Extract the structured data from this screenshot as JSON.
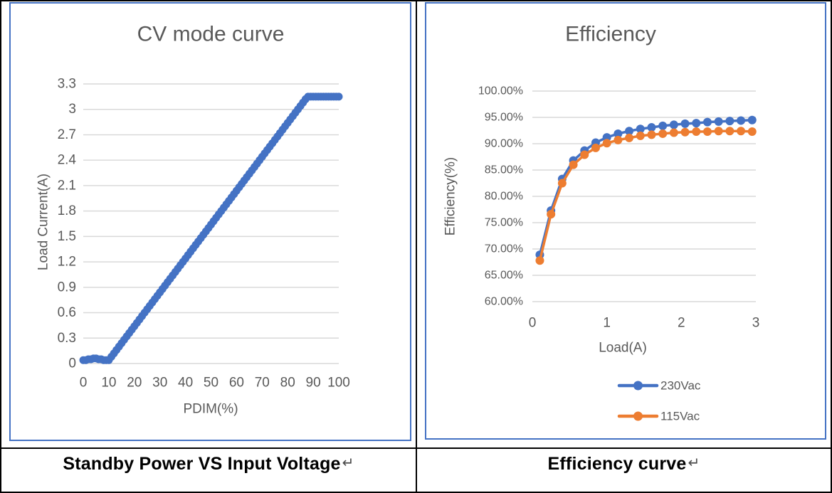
{
  "colors": {
    "series_blue": "#4472C4",
    "series_orange": "#ED7D31",
    "grid": "#D9D9D9",
    "axis_text": "#595959",
    "chart_border": "#4472C4",
    "table_border": "#000000"
  },
  "captions": {
    "left": {
      "text": "Standby Power VS Input Voltage",
      "return_mark": "↵"
    },
    "right": {
      "text": "Efficiency curve",
      "return_mark": "↵"
    }
  },
  "chart_data": [
    {
      "type": "scatter",
      "title": "CV mode curve",
      "xlabel": "PDIM(%)",
      "ylabel": "Load Current(A)",
      "xlim": [
        0,
        100
      ],
      "ylim": [
        0,
        3.3
      ],
      "grid": "horizontal",
      "legend_position": "none",
      "xticks": [
        0,
        10,
        20,
        30,
        40,
        50,
        60,
        70,
        80,
        90,
        100
      ],
      "xtick_labels": [
        "0",
        "10",
        "20",
        "30",
        "40",
        "50",
        "60",
        "70",
        "80",
        "90",
        "100"
      ],
      "yticks": [
        0,
        0.3,
        0.6,
        0.9,
        1.2,
        1.5,
        1.8,
        2.1,
        2.4,
        2.7,
        3,
        3.3
      ],
      "ytick_labels": [
        "0",
        "0.3",
        "0.6",
        "0.9",
        "1.2",
        "1.5",
        "1.8",
        "2.1",
        "2.4",
        "2.7",
        "3",
        "3.3"
      ],
      "series": [
        {
          "name": "Load current",
          "color": "#4472C4",
          "style": "markers",
          "x": [
            0,
            1,
            2,
            3,
            4,
            5,
            6,
            7,
            8,
            9,
            10,
            11,
            12,
            13,
            14,
            15,
            16,
            17,
            18,
            19,
            20,
            21,
            22,
            23,
            24,
            25,
            26,
            27,
            28,
            29,
            30,
            31,
            32,
            33,
            34,
            35,
            36,
            37,
            38,
            39,
            40,
            41,
            42,
            43,
            44,
            45,
            46,
            47,
            48,
            49,
            50,
            51,
            52,
            53,
            54,
            55,
            56,
            57,
            58,
            59,
            60,
            61,
            62,
            63,
            64,
            65,
            66,
            67,
            68,
            69,
            70,
            71,
            72,
            73,
            74,
            75,
            76,
            77,
            78,
            79,
            80,
            81,
            82,
            83,
            84,
            85,
            86,
            87,
            88,
            89,
            90,
            91,
            92,
            93,
            94,
            95,
            96,
            97,
            98,
            99,
            100
          ],
          "y": [
            0.04,
            0.04,
            0.05,
            0.05,
            0.06,
            0.06,
            0.05,
            0.05,
            0.04,
            0.04,
            0.04,
            0.08,
            0.12,
            0.16,
            0.2,
            0.24,
            0.28,
            0.32,
            0.36,
            0.4,
            0.44,
            0.48,
            0.52,
            0.56,
            0.6,
            0.64,
            0.68,
            0.72,
            0.76,
            0.8,
            0.84,
            0.88,
            0.92,
            0.96,
            1.0,
            1.04,
            1.08,
            1.12,
            1.16,
            1.2,
            1.24,
            1.28,
            1.32,
            1.36,
            1.4,
            1.44,
            1.48,
            1.52,
            1.56,
            1.6,
            1.64,
            1.68,
            1.72,
            1.76,
            1.8,
            1.84,
            1.88,
            1.92,
            1.96,
            2.0,
            2.04,
            2.08,
            2.12,
            2.16,
            2.2,
            2.24,
            2.28,
            2.32,
            2.36,
            2.4,
            2.44,
            2.48,
            2.52,
            2.56,
            2.6,
            2.64,
            2.68,
            2.72,
            2.76,
            2.8,
            2.84,
            2.88,
            2.92,
            2.96,
            3.0,
            3.04,
            3.08,
            3.12,
            3.15,
            3.15,
            3.15,
            3.15,
            3.15,
            3.15,
            3.15,
            3.15,
            3.15,
            3.15,
            3.15,
            3.15,
            3.15
          ]
        }
      ]
    },
    {
      "type": "line",
      "title": "Efficiency",
      "xlabel": "Load(A)",
      "ylabel": "Efficiency(%)",
      "xlim": [
        0,
        3
      ],
      "ylim": [
        60,
        100
      ],
      "grid": "horizontal",
      "legend_position": "bottom",
      "xticks": [
        0,
        1,
        2,
        3
      ],
      "xtick_labels": [
        "0",
        "1",
        "2",
        "3"
      ],
      "yticks": [
        60,
        65,
        70,
        75,
        80,
        85,
        90,
        95,
        100
      ],
      "ytick_labels": [
        "60.00%",
        "65.00%",
        "70.00%",
        "75.00%",
        "80.00%",
        "85.00%",
        "90.00%",
        "95.00%",
        "100.00%"
      ],
      "series": [
        {
          "name": "230Vac",
          "color": "#4472C4",
          "style": "line+markers",
          "x": [
            0.1,
            0.25,
            0.4,
            0.55,
            0.7,
            0.85,
            1.0,
            1.15,
            1.3,
            1.45,
            1.6,
            1.75,
            1.9,
            2.05,
            2.2,
            2.35,
            2.5,
            2.65,
            2.8,
            2.95
          ],
          "y": [
            68.9,
            77.3,
            83.3,
            86.8,
            88.7,
            90.2,
            91.2,
            91.9,
            92.4,
            92.8,
            93.1,
            93.4,
            93.6,
            93.8,
            93.9,
            94.1,
            94.2,
            94.3,
            94.4,
            94.5
          ]
        },
        {
          "name": "115Vac",
          "color": "#ED7D31",
          "style": "line+markers",
          "x": [
            0.1,
            0.25,
            0.4,
            0.55,
            0.7,
            0.85,
            1.0,
            1.15,
            1.3,
            1.45,
            1.6,
            1.75,
            1.9,
            2.05,
            2.2,
            2.35,
            2.5,
            2.65,
            2.8,
            2.95
          ],
          "y": [
            67.8,
            76.6,
            82.5,
            86.0,
            87.9,
            89.2,
            90.1,
            90.7,
            91.1,
            91.5,
            91.7,
            91.9,
            92.1,
            92.2,
            92.3,
            92.3,
            92.4,
            92.4,
            92.4,
            92.3
          ]
        }
      ]
    }
  ]
}
